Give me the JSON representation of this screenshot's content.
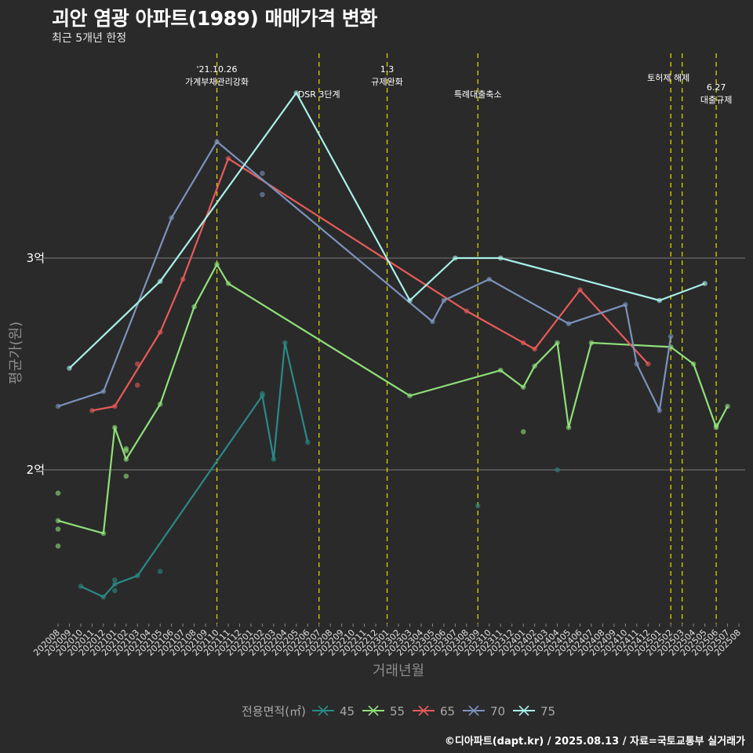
{
  "header": {
    "title": "괴안 염광 아파트(1989) 매매가격 변화",
    "subtitle": "최근 5개년 한정"
  },
  "footer": "©디아파트(dapt.kr) / 2025.08.13 / 자료=국토교통부 실거래가",
  "chart_data": {
    "type": "line",
    "title": "괴안 염광 아파트(1989) 매매가격 변화",
    "subtitle": "최근 5개년 한정",
    "xlabel": "거래년월",
    "ylabel": "평균가(원)",
    "x_categories": [
      "202008",
      "202009",
      "202010",
      "202011",
      "202012",
      "202101",
      "202102",
      "202103",
      "202104",
      "202105",
      "202106",
      "202107",
      "202108",
      "202109",
      "202110",
      "202111",
      "202112",
      "202201",
      "202202",
      "202203",
      "202204",
      "202205",
      "202206",
      "202207",
      "202208",
      "202209",
      "202210",
      "202211",
      "202212",
      "202301",
      "202302",
      "202303",
      "202304",
      "202305",
      "202306",
      "202307",
      "202308",
      "202309",
      "202310",
      "202311",
      "202312",
      "202401",
      "202402",
      "202403",
      "202404",
      "202405",
      "202406",
      "202407",
      "202408",
      "202409",
      "202410",
      "202411",
      "202412",
      "202501",
      "202502",
      "202503",
      "202504",
      "202505",
      "202506",
      "202507",
      "202508"
    ],
    "y_unit": "억",
    "ylim": [
      1.3,
      4.0
    ],
    "y_ticks": [
      {
        "value": 2,
        "label": "2억"
      },
      {
        "value": 3,
        "label": "3억"
      }
    ],
    "grid": true,
    "legend": {
      "title": "전용면적(㎡)",
      "position": "bottom"
    },
    "series": [
      {
        "name": "45",
        "color": "#2a8a86",
        "line": [
          [
            "202010",
            1.45
          ],
          [
            "202012",
            1.4
          ],
          [
            "202101",
            1.46
          ],
          [
            "202103",
            1.5
          ],
          [
            "202202",
            2.35
          ],
          [
            "202203",
            2.05
          ],
          [
            "202204",
            2.6
          ],
          [
            "202206",
            2.13
          ]
        ],
        "points": [
          [
            "202101",
            1.48
          ],
          [
            "202101",
            1.43
          ],
          [
            "202105",
            1.52
          ],
          [
            "202309",
            1.83
          ],
          [
            "202404",
            2.0
          ],
          [
            "202202",
            2.36
          ]
        ]
      },
      {
        "name": "55",
        "color": "#8fe07a",
        "line": [
          [
            "202008",
            1.76
          ],
          [
            "202012",
            1.7
          ],
          [
            "202101",
            2.2
          ],
          [
            "202102",
            2.05
          ],
          [
            "202105",
            2.31
          ],
          [
            "202108",
            2.77
          ],
          [
            "202110",
            2.97
          ],
          [
            "202111",
            2.88
          ],
          [
            "202303",
            2.35
          ],
          [
            "202311",
            2.47
          ],
          [
            "202401",
            2.39
          ],
          [
            "202402",
            2.49
          ],
          [
            "202404",
            2.6
          ],
          [
            "202405",
            2.2
          ],
          [
            "202407",
            2.6
          ],
          [
            "202502",
            2.58
          ],
          [
            "202504",
            2.5
          ],
          [
            "202506",
            2.2
          ],
          [
            "202507",
            2.3
          ]
        ],
        "points": [
          [
            "202008",
            1.89
          ],
          [
            "202008",
            1.72
          ],
          [
            "202008",
            1.64
          ],
          [
            "202102",
            2.1
          ],
          [
            "202102",
            2.09
          ],
          [
            "202102",
            1.97
          ],
          [
            "202401",
            2.18
          ],
          [
            "202506",
            2.21
          ]
        ]
      },
      {
        "name": "65",
        "color": "#e85a5a",
        "line": [
          [
            "202011",
            2.28
          ],
          [
            "202101",
            2.3
          ],
          [
            "202105",
            2.65
          ],
          [
            "202107",
            2.9
          ],
          [
            "202111",
            3.47
          ],
          [
            "202308",
            2.75
          ],
          [
            "202402",
            2.57
          ],
          [
            "202406",
            2.85
          ],
          [
            "202412",
            2.5
          ]
        ],
        "points": [
          [
            "202103",
            2.5
          ],
          [
            "202103",
            2.4
          ],
          [
            "202401",
            2.6
          ]
        ]
      },
      {
        "name": "70",
        "color": "#7b93bd",
        "line": [
          [
            "202008",
            2.3
          ],
          [
            "202012",
            2.37
          ],
          [
            "202106",
            3.19
          ],
          [
            "202110",
            3.55
          ],
          [
            "202305",
            2.7
          ],
          [
            "202306",
            2.8
          ],
          [
            "202310",
            2.9
          ],
          [
            "202405",
            2.69
          ],
          [
            "202410",
            2.78
          ],
          [
            "202411",
            2.5
          ],
          [
            "202501",
            2.28
          ],
          [
            "202502",
            2.63
          ]
        ],
        "points": [
          [
            "202202",
            3.4
          ],
          [
            "202202",
            3.3
          ]
        ]
      },
      {
        "name": "75",
        "color": "#a8f0e8",
        "line": [
          [
            "202009",
            2.48
          ],
          [
            "202105",
            2.89
          ],
          [
            "202205",
            3.78
          ],
          [
            "202303",
            2.8
          ],
          [
            "202307",
            3.0
          ],
          [
            "202311",
            3.0
          ],
          [
            "202501",
            2.8
          ],
          [
            "202505",
            2.88
          ]
        ],
        "points": []
      }
    ],
    "vlines": [
      {
        "x": "202110",
        "label": [
          "'21.10.26",
          "가계부채관리강화"
        ]
      },
      {
        "x": "202207",
        "label": [
          "DSR 3단계"
        ]
      },
      {
        "x": "202301",
        "label": [
          "1.3",
          "규제완화"
        ]
      },
      {
        "x": "202309",
        "label": [
          "특례대출축소"
        ]
      },
      {
        "x": "202502",
        "label": [
          "토허제 해제"
        ]
      },
      {
        "x": "202503",
        "label": []
      },
      {
        "x": "202506",
        "label": [
          "6.27",
          "대출규제"
        ]
      }
    ],
    "vline_color": "#d4d400"
  }
}
